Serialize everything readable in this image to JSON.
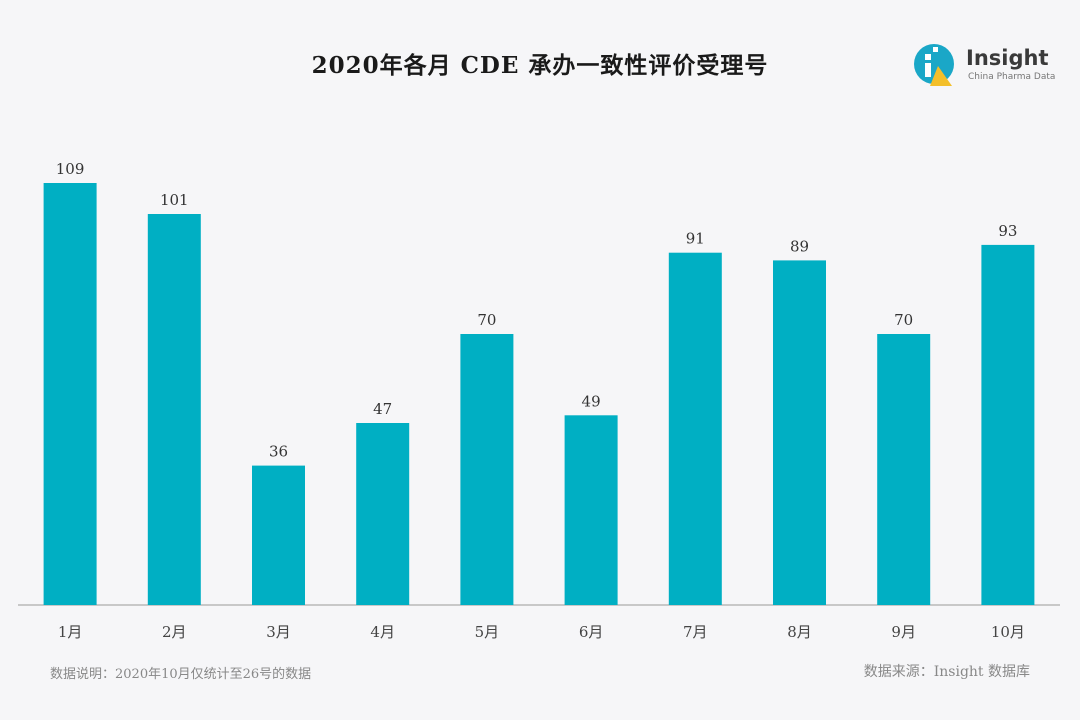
{
  "title": "2020年各月 CDE 承办一致性评价受理号",
  "brand": {
    "name": "Insight",
    "tagline": "China Pharma Data",
    "colors": {
      "teal": "#1aa7c7",
      "yellow": "#f3bf2a"
    }
  },
  "footnote": "数据说明：2020年10月仅统计至26号的数据",
  "source": "数据来源：Insight 数据库",
  "chart_data": {
    "type": "bar",
    "categories": [
      "1月",
      "2月",
      "3月",
      "4月",
      "5月",
      "6月",
      "7月",
      "8月",
      "9月",
      "10月"
    ],
    "values": [
      109,
      101,
      36,
      47,
      70,
      49,
      91,
      89,
      70,
      93
    ],
    "title": "2020年各月 CDE 承办一致性评价受理号",
    "xlabel": "",
    "ylabel": "",
    "ylim": [
      0,
      115
    ],
    "grid": false,
    "data_labels": true,
    "bar_color": "#00afc3",
    "axis_color": "#999999"
  }
}
